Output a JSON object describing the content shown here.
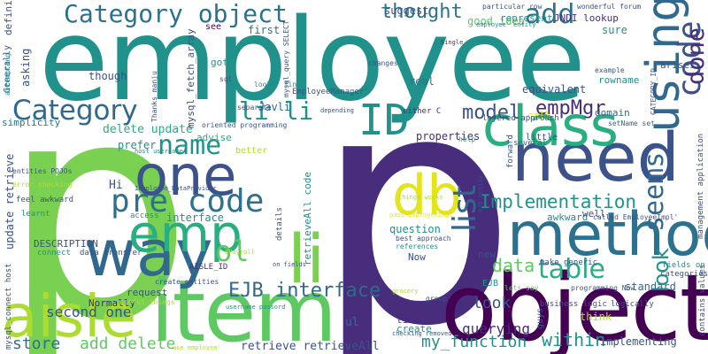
{
  "wordcloud": {
    "p": "p",
    "employee": "employee",
    "object": "object",
    "item": "item",
    "need": "need",
    "class": "class",
    "method": "method",
    "way": "way",
    "one": "one",
    "emp": "emp",
    "db": "db",
    "li": "li",
    "ID": "ID",
    "using": "using",
    "code": "code",
    "aisle": "aisle",
    "category_object": "Category object",
    "category": "Category",
    "pre_code": "pre code",
    "table": "table",
    "add": "add",
    "name": "name",
    "list": "list",
    "seems": "seems",
    "implementation": "Implementation",
    "li_li": "li li",
    "thought": "thought",
    "model": "model",
    "empmgr": "empMgr",
    "ejb_interface": "EJB interface",
    "store": "store",
    "add_delete": "add delete",
    "second_one": "second one",
    "my_function": "my_function",
    "within": "within",
    "look": "look",
    "data": "data",
    "querying": "querying",
    "retrieve_retrieveall": "retrieve retrieveAll",
    "ol": "ol",
    "delete_update": "delete update",
    "update_retrieve": "update retrieve",
    "good_idea": "good idea",
    "suggest": "suggest",
    "defining": "defining",
    "asking": "asking",
    "generally": "Generally",
    "though": "though",
    "simplicity": "simplicity",
    "javli": "Javli",
    "got": "got",
    "see": "see",
    "first": "first",
    "real": "real",
    "jndi_lookup": "JNDI lookup",
    "represent": "represent",
    "sure": "sure",
    "arises": "arises",
    "equivalent": "equivalent",
    "rowname": "rowname",
    "done": "done",
    "domain": "domain",
    "call": "call",
    "properties": "properties",
    "prefer": "prefer",
    "advise": "advise",
    "better": "better",
    "hi": "Hi",
    "interface": "interface",
    "description": "DESCRIPTION",
    "normally": "Normally",
    "request": "request",
    "question": "question",
    "now": "Now",
    "time": "time",
    "create": "create",
    "guys": "guys",
    "think": "think",
    "standard": "standard",
    "ul": "ul",
    "awkward": "awkward",
    "well": "well",
    "new": "new",
    "ejb": "EJB",
    "implementing": "implementing",
    "make_generic": "make generic",
    "retrieveall_code": "retrieveAll code",
    "employeemanager": "EmployeeManager'",
    "mysql_fetch_array": "mysql_fetch_array",
    "oriented_programming": "oriented programming",
    "layered_approach": "layered approach",
    "either_c": "either C",
    "little": "little",
    "several": "several",
    "forward": "forward",
    "called_employeeimpl": "called EmployeeImpl'",
    "setname_set": "setName set",
    "help": "help",
    "best_approach": "best approach",
    "references": "references",
    "entities_pojos": "entities POJOs",
    "error_checking": "error checking",
    "feel_awkward": "feel awkward",
    "learnt": "learnt",
    "access": "access",
    "connect": "connect",
    "data_transfer": "data transfer",
    "create_entities": "create entities",
    "useful_things": "useful things",
    "business_logic": "business logic",
    "programming_now": "programming Now",
    "lets_say": "lets say",
    "logically": "logically",
    "fields_on": "fields on",
    "categories": "categories",
    "contains_values": "contains values",
    "aisle_id": "AISLE_ID",
    "group": "group",
    "mysql_connect_host": "mysql_connect host",
    "thanks_manju": "Thanks manju",
    "example": "example",
    "wonderful_forum": "wonderful forum",
    "particular_row": "particular row",
    "changes": "changes",
    "single": "Single",
    "employee_entity": "employee' entity",
    "attempting": "attempting",
    "sql": "sql",
    "looks_fine": "looks' fine",
    "separate": "separate",
    "depending": "depending",
    "mysql_query_select": "mysql_query SELECT",
    "category_id": "CATEGORY_ID",
    "management_application": "management application",
    "pass_employeeimpl": "pass EmployeeImpl'",
    "things_works": "things works",
    "ejb_entity": "EJB entity",
    "grocery": "grocery",
    "checking_removed": "checking removed",
    "username_passord": "username passord",
    "use_employee": "use employee'",
    "details": "details",
    "iemployee_dataprovider": "IEmployee_DataProvider",
    "host_username": "host username",
    "ipayroll": "IPayroll",
    "on_fields": "on fields"
  },
  "colors": {
    "purple": "#440154",
    "indigo": "#472d7b",
    "blue": "#3b528b",
    "slate": "#2c728e",
    "teal": "#21918c",
    "green": "#28ae80",
    "lime": "#5ec962",
    "yellowgreen": "#addc30",
    "yellow": "#e3e419"
  }
}
